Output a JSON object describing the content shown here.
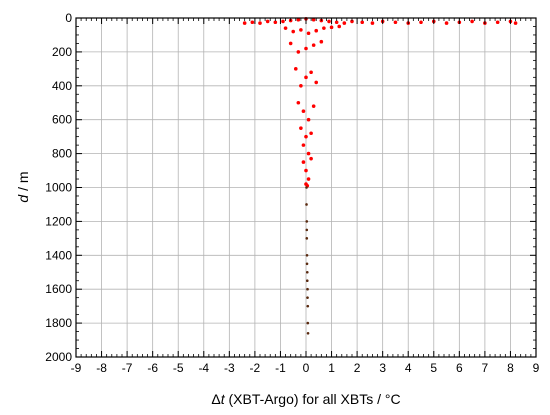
{
  "chart_data": {
    "type": "scatter",
    "title": "",
    "xlabel_parts": [
      "Δ",
      "t",
      " (XBT-Argo) for all XBTs / °C"
    ],
    "ylabel_parts": [
      "d",
      " / m"
    ],
    "xlim": [
      -9,
      9
    ],
    "ylim": [
      0,
      2000
    ],
    "y_inverted": true,
    "xticks": [
      -9,
      -8,
      -7,
      -6,
      -5,
      -4,
      -3,
      -2,
      -1,
      0,
      1,
      2,
      3,
      4,
      5,
      6,
      7,
      8,
      9
    ],
    "yticks": [
      0,
      200,
      400,
      600,
      800,
      1000,
      1200,
      1400,
      1600,
      1800,
      2000
    ],
    "grid": true,
    "series": [
      {
        "marker_color": "#ff0000",
        "x": [
          -2.4,
          -2.1,
          -1.8,
          -1.5,
          -1.2,
          -0.9,
          -0.6,
          -0.3,
          0.0,
          0.3,
          0.6,
          0.9,
          1.2,
          1.5,
          1.8,
          2.2,
          2.6,
          3.0,
          3.5,
          4.0,
          4.5,
          5.0,
          5.5,
          6.0,
          6.5,
          7.0,
          7.5,
          8.0,
          8.2,
          -0.8,
          -0.5,
          -0.2,
          0.1,
          0.4,
          0.7,
          1.0,
          1.3,
          -0.6,
          -0.3,
          0.0,
          0.3,
          0.6,
          -0.4,
          -0.2,
          0.0,
          0.2,
          0.4,
          -0.3,
          -0.1,
          0.1,
          0.3,
          -0.2,
          0.0,
          0.2,
          -0.1,
          0.1,
          0.2,
          -0.1,
          0.0,
          0.1,
          0.0,
          0.05
        ],
        "y": [
          30,
          25,
          30,
          20,
          25,
          20,
          15,
          10,
          5,
          10,
          15,
          20,
          25,
          30,
          20,
          25,
          30,
          20,
          25,
          30,
          25,
          20,
          30,
          25,
          20,
          30,
          25,
          20,
          30,
          60,
          80,
          70,
          90,
          75,
          60,
          55,
          50,
          150,
          200,
          180,
          160,
          140,
          300,
          400,
          350,
          320,
          380,
          500,
          550,
          600,
          520,
          650,
          700,
          680,
          750,
          800,
          830,
          850,
          900,
          950,
          980,
          990
        ]
      },
      {
        "marker_color": "#5a2a10",
        "x": [
          0.02,
          0.02,
          0.03,
          0.03,
          0.03,
          0.04,
          0.04,
          0.05,
          0.05,
          0.06,
          0.06,
          0.07,
          0.07,
          0.08
        ],
        "y": [
          1000,
          1100,
          1200,
          1250,
          1300,
          1400,
          1450,
          1500,
          1550,
          1600,
          1650,
          1700,
          1800,
          1860
        ]
      }
    ]
  }
}
